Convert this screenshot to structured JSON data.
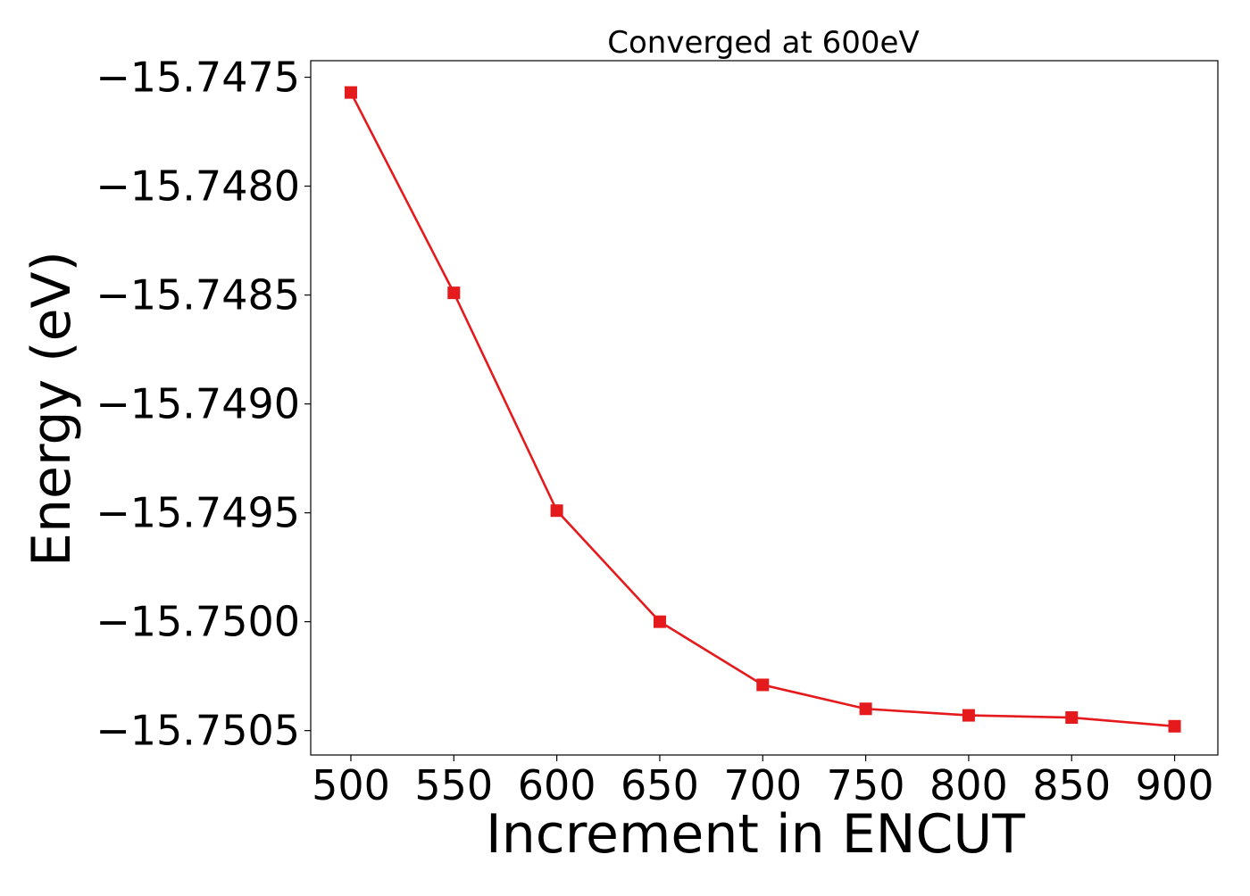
{
  "chart_data": {
    "type": "line",
    "title": "Converged at 600eV",
    "xlabel": "Increment in ENCUT",
    "ylabel": "Energy (eV)",
    "x": [
      500,
      550,
      600,
      650,
      700,
      750,
      800,
      850,
      900
    ],
    "series": [
      {
        "values": [
          -15.74757,
          -15.74849,
          -15.74949,
          -15.75,
          -15.75029,
          -15.7504,
          -15.75043,
          -15.75044,
          -15.75048
        ],
        "color": "#e41a1c",
        "marker": "square"
      }
    ],
    "xticks": [
      500,
      550,
      600,
      650,
      700,
      750,
      800,
      850,
      900
    ],
    "yticks": [
      -15.7475,
      -15.748,
      -15.7485,
      -15.749,
      -15.7495,
      -15.75,
      -15.7505
    ],
    "ytick_labels": [
      "−15.7475",
      "−15.7480",
      "−15.7485",
      "−15.7490",
      "−15.7495",
      "−15.7500",
      "−15.7505"
    ],
    "xlim": [
      480.5,
      921
    ],
    "ylim": [
      -15.750612,
      -15.747424
    ],
    "grid": false,
    "legend": "none"
  }
}
